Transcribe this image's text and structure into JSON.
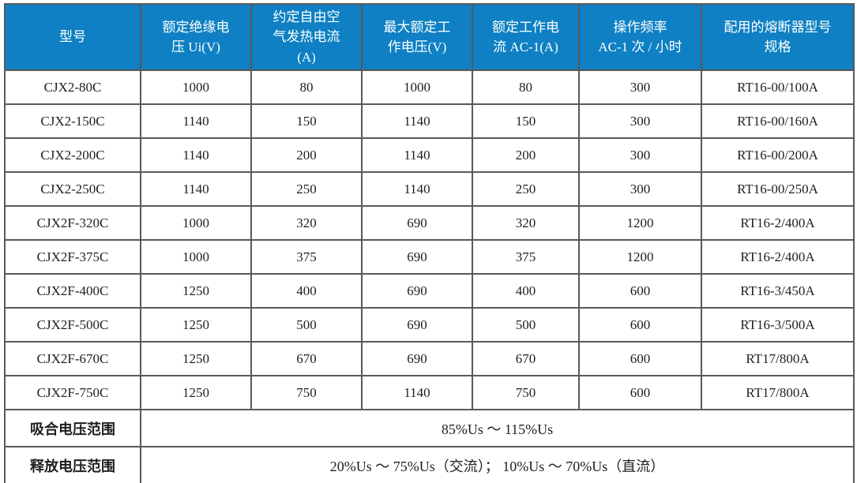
{
  "colors": {
    "header_bg": "#0E80C3",
    "header_text": "#FFFFFF",
    "grid_line": "#595959",
    "faint_line": "#C9C9C9",
    "body_text": "#1F1F1F"
  },
  "table": {
    "header": [
      {
        "id": "model",
        "lines": [
          "型号"
        ]
      },
      {
        "id": "ui",
        "lines": [
          "额定绝缘电",
          "压 Ui(V)"
        ]
      },
      {
        "id": "ith",
        "lines": [
          "约定自由空",
          "气发热电流",
          "(A)"
        ]
      },
      {
        "id": "ue",
        "lines": [
          "最大额定工",
          "作电压(V)"
        ]
      },
      {
        "id": "ie",
        "lines": [
          "额定工作电",
          "流 AC-1(A)"
        ]
      },
      {
        "id": "freq",
        "lines": [
          "操作频率",
          "AC-1 次 / 小时"
        ]
      },
      {
        "id": "fuse",
        "lines": [
          "配用的熔断器型号",
          "规格"
        ]
      }
    ],
    "rows": [
      {
        "model": "CJX2-80C",
        "ui": "1000",
        "ith": "80",
        "ue": "1000",
        "ie": "80",
        "freq": "300",
        "fuse": "RT16-00/100A"
      },
      {
        "model": "CJX2-150C",
        "ui": "1140",
        "ith": "150",
        "ue": "1140",
        "ie": "150",
        "freq": "300",
        "fuse": "RT16-00/160A"
      },
      {
        "model": "CJX2-200C",
        "ui": "1140",
        "ith": "200",
        "ue": "1140",
        "ie": "200",
        "freq": "300",
        "fuse": "RT16-00/200A"
      },
      {
        "model": "CJX2-250C",
        "ui": "1140",
        "ith": "250",
        "ue": "1140",
        "ie": "250",
        "freq": "300",
        "fuse": "RT16-00/250A"
      },
      {
        "model": "CJX2F-320C",
        "ui": "1000",
        "ith": "320",
        "ue": "690",
        "ie": "320",
        "freq": "1200",
        "fuse": "RT16-2/400A"
      },
      {
        "model": "CJX2F-375C",
        "ui": "1000",
        "ith": "375",
        "ue": "690",
        "ie": "375",
        "freq": "1200",
        "fuse": "RT16-2/400A"
      },
      {
        "model": "CJX2F-400C",
        "ui": "1250",
        "ith": "400",
        "ue": "690",
        "ie": "400",
        "freq": "600",
        "fuse": "RT16-3/450A"
      },
      {
        "model": "CJX2F-500C",
        "ui": "1250",
        "ith": "500",
        "ue": "690",
        "ie": "500",
        "freq": "600",
        "fuse": "RT16-3/500A"
      },
      {
        "model": "CJX2F-670C",
        "ui": "1250",
        "ith": "670",
        "ue": "690",
        "ie": "670",
        "freq": "600",
        "fuse": "RT17/800A"
      },
      {
        "model": "CJX2F-750C",
        "ui": "1250",
        "ith": "750",
        "ue": "1140",
        "ie": "750",
        "freq": "600",
        "fuse": "RT17/800A"
      }
    ],
    "footer": [
      {
        "label": "吸合电压范围",
        "value": "85%Us ～ 115%Us"
      },
      {
        "label": "释放电压范围",
        "value": "20%Us ～ 75%Us（交流）； 10%Us ～ 70%Us（直流）"
      }
    ]
  }
}
